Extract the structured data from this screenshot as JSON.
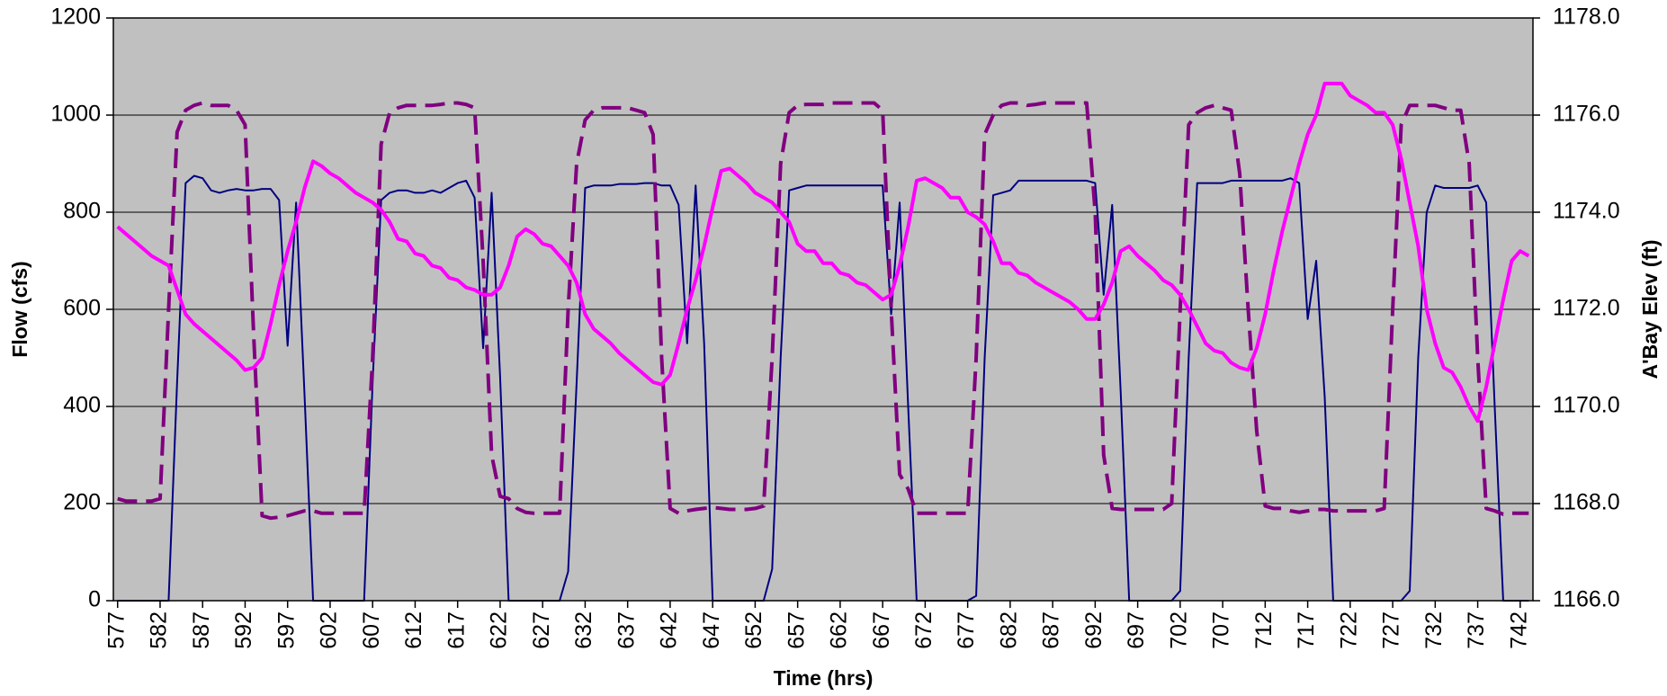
{
  "chart_data": {
    "type": "line",
    "x_label": "Time (hrs)",
    "y_label": "Flow (cfs)",
    "y2_label": "A'Bay Elev (ft)",
    "xlim": [
      576.5,
      743.5
    ],
    "xticks": [
      577,
      582,
      587,
      592,
      597,
      602,
      607,
      612,
      617,
      622,
      627,
      632,
      637,
      642,
      647,
      652,
      657,
      662,
      667,
      672,
      677,
      682,
      687,
      692,
      697,
      702,
      707,
      712,
      717,
      722,
      727,
      732,
      737,
      742
    ],
    "ylim": [
      0,
      1200
    ],
    "yticks": [
      0,
      200,
      400,
      600,
      800,
      1000,
      1200
    ],
    "y2lim": [
      1166,
      1178
    ],
    "y2ticks": [
      {
        "value": 1166,
        "label": "1166.0"
      },
      {
        "value": 1168,
        "label": "1168.0"
      },
      {
        "value": 1170,
        "label": "1170.0"
      },
      {
        "value": 1172,
        "label": "1172.0"
      },
      {
        "value": 1174,
        "label": "1174.0"
      },
      {
        "value": 1176,
        "label": "1176.0"
      },
      {
        "value": 1178,
        "label": "1178.0"
      }
    ],
    "grid": true,
    "plot_background": "#c0c0c0",
    "x": [
      577,
      578,
      579,
      580,
      581,
      582,
      583,
      584,
      585,
      586,
      587,
      588,
      589,
      590,
      591,
      592,
      593,
      594,
      595,
      596,
      597,
      598,
      599,
      600,
      601,
      602,
      603,
      604,
      605,
      606,
      607,
      608,
      609,
      610,
      611,
      612,
      613,
      614,
      615,
      616,
      617,
      618,
      619,
      620,
      621,
      622,
      623,
      624,
      625,
      626,
      627,
      628,
      629,
      630,
      631,
      632,
      633,
      634,
      635,
      636,
      637,
      638,
      639,
      640,
      641,
      642,
      643,
      644,
      645,
      646,
      647,
      648,
      649,
      650,
      651,
      652,
      653,
      654,
      655,
      656,
      657,
      658,
      659,
      660,
      661,
      662,
      663,
      664,
      665,
      666,
      667,
      668,
      669,
      670,
      671,
      672,
      673,
      674,
      675,
      676,
      677,
      678,
      679,
      680,
      681,
      682,
      683,
      684,
      685,
      686,
      687,
      688,
      689,
      690,
      691,
      692,
      693,
      694,
      695,
      696,
      697,
      698,
      699,
      700,
      701,
      702,
      703,
      704,
      705,
      706,
      707,
      708,
      709,
      710,
      711,
      712,
      713,
      714,
      715,
      716,
      717,
      718,
      719,
      720,
      721,
      722,
      723,
      724,
      725,
      726,
      727,
      728,
      729,
      730,
      731,
      732,
      733,
      734,
      735,
      736,
      737,
      738,
      739,
      740,
      741,
      742,
      743
    ],
    "series": [
      {
        "color": "#000080",
        "line_style": "solid",
        "width": 2,
        "values": [
          0,
          0,
          0,
          0,
          0,
          0,
          0,
          450,
          860,
          875,
          870,
          845,
          840,
          845,
          848,
          845,
          845,
          848,
          848,
          825,
          525,
          820,
          420,
          0,
          0,
          0,
          0,
          0,
          0,
          0,
          450,
          825,
          840,
          845,
          845,
          840,
          840,
          845,
          840,
          850,
          860,
          865,
          830,
          520,
          840,
          460,
          0,
          0,
          0,
          0,
          0,
          0,
          0,
          60,
          450,
          850,
          855,
          855,
          855,
          858,
          858,
          858,
          860,
          860,
          855,
          855,
          815,
          530,
          855,
          530,
          0,
          0,
          0,
          0,
          0,
          0,
          0,
          65,
          500,
          845,
          850,
          855,
          855,
          855,
          855,
          855,
          855,
          855,
          855,
          855,
          855,
          590,
          820,
          400,
          0,
          0,
          0,
          0,
          0,
          0,
          0,
          10,
          500,
          835,
          840,
          845,
          865,
          865,
          865,
          865,
          865,
          865,
          865,
          865,
          865,
          860,
          630,
          815,
          430,
          0,
          0,
          0,
          0,
          0,
          0,
          20,
          500,
          860,
          860,
          860,
          860,
          865,
          865,
          865,
          865,
          865,
          865,
          865,
          870,
          860,
          580,
          700,
          420,
          0,
          0,
          0,
          0,
          0,
          0,
          0,
          0,
          0,
          20,
          500,
          800,
          855,
          850,
          850,
          850,
          850,
          855,
          820,
          400,
          0,
          0,
          0,
          0
        ]
      },
      {
        "color": "#800080",
        "line_style": "dashed",
        "width": 4,
        "values": [
          210,
          205,
          205,
          205,
          205,
          210,
          600,
          965,
          1010,
          1020,
          1025,
          1020,
          1020,
          1020,
          1010,
          980,
          550,
          175,
          170,
          172,
          175,
          180,
          185,
          185,
          180,
          180,
          180,
          180,
          180,
          180,
          500,
          940,
          1005,
          1015,
          1020,
          1020,
          1020,
          1020,
          1022,
          1025,
          1025,
          1022,
          1015,
          700,
          300,
          215,
          210,
          190,
          182,
          180,
          180,
          180,
          180,
          600,
          900,
          990,
          1010,
          1015,
          1015,
          1015,
          1015,
          1010,
          1005,
          960,
          500,
          190,
          180,
          185,
          188,
          190,
          192,
          190,
          188,
          188,
          188,
          190,
          195,
          500,
          900,
          1005,
          1020,
          1022,
          1022,
          1022,
          1025,
          1025,
          1025,
          1025,
          1025,
          1025,
          1010,
          600,
          260,
          230,
          180,
          180,
          180,
          180,
          180,
          180,
          180,
          500,
          960,
          1000,
          1020,
          1025,
          1025,
          1020,
          1022,
          1025,
          1025,
          1025,
          1025,
          1025,
          1025,
          800,
          300,
          190,
          188,
          188,
          188,
          188,
          188,
          188,
          200,
          600,
          980,
          1005,
          1015,
          1020,
          1015,
          1010,
          880,
          600,
          350,
          195,
          190,
          190,
          185,
          182,
          185,
          188,
          188,
          185,
          185,
          185,
          185,
          185,
          185,
          190,
          600,
          980,
          1020,
          1020,
          1020,
          1020,
          1015,
          1010,
          1010,
          900,
          500,
          190,
          185,
          178,
          180,
          180,
          180
        ]
      },
      {
        "color": "#ff00ff",
        "line_style": "solid",
        "width": 4,
        "axis": "y2",
        "values": [
          1173.7,
          1173.55,
          1173.4,
          1173.25,
          1173.1,
          1173.0,
          1172.9,
          1172.4,
          1171.9,
          1171.7,
          1171.55,
          1171.4,
          1171.25,
          1171.1,
          1170.95,
          1170.75,
          1170.8,
          1171.0,
          1171.7,
          1172.5,
          1173.2,
          1173.8,
          1174.5,
          1175.05,
          1174.95,
          1174.8,
          1174.7,
          1174.55,
          1174.4,
          1174.3,
          1174.2,
          1174.05,
          1173.8,
          1173.45,
          1173.4,
          1173.15,
          1173.1,
          1172.9,
          1172.85,
          1172.65,
          1172.6,
          1172.45,
          1172.4,
          1172.3,
          1172.3,
          1172.45,
          1172.9,
          1173.5,
          1173.65,
          1173.55,
          1173.35,
          1173.3,
          1173.1,
          1172.9,
          1172.55,
          1171.9,
          1171.6,
          1171.45,
          1171.3,
          1171.1,
          1170.95,
          1170.8,
          1170.65,
          1170.5,
          1170.45,
          1170.65,
          1171.3,
          1172.0,
          1172.6,
          1173.3,
          1174.1,
          1174.85,
          1174.9,
          1174.75,
          1174.6,
          1174.4,
          1174.3,
          1174.2,
          1174.0,
          1173.8,
          1173.35,
          1173.2,
          1173.2,
          1172.95,
          1172.95,
          1172.75,
          1172.7,
          1172.55,
          1172.5,
          1172.35,
          1172.2,
          1172.3,
          1172.9,
          1173.7,
          1174.65,
          1174.7,
          1174.6,
          1174.5,
          1174.3,
          1174.3,
          1174.0,
          1173.9,
          1173.75,
          1173.4,
          1172.95,
          1172.95,
          1172.75,
          1172.7,
          1172.55,
          1172.45,
          1172.35,
          1172.25,
          1172.15,
          1172.0,
          1171.8,
          1171.8,
          1172.1,
          1172.55,
          1173.2,
          1173.3,
          1173.1,
          1172.95,
          1172.8,
          1172.6,
          1172.5,
          1172.3,
          1172.0,
          1171.65,
          1171.3,
          1171.15,
          1171.1,
          1170.9,
          1170.8,
          1170.75,
          1171.2,
          1171.9,
          1172.8,
          1173.6,
          1174.3,
          1175.0,
          1175.6,
          1176.0,
          1176.65,
          1176.65,
          1176.65,
          1176.4,
          1176.3,
          1176.2,
          1176.05,
          1176.05,
          1175.8,
          1175.1,
          1174.2,
          1173.3,
          1172.0,
          1171.3,
          1170.8,
          1170.7,
          1170.4,
          1170.0,
          1169.7,
          1170.4,
          1171.3,
          1172.2,
          1173.0,
          1173.2,
          1173.1
        ]
      }
    ]
  }
}
